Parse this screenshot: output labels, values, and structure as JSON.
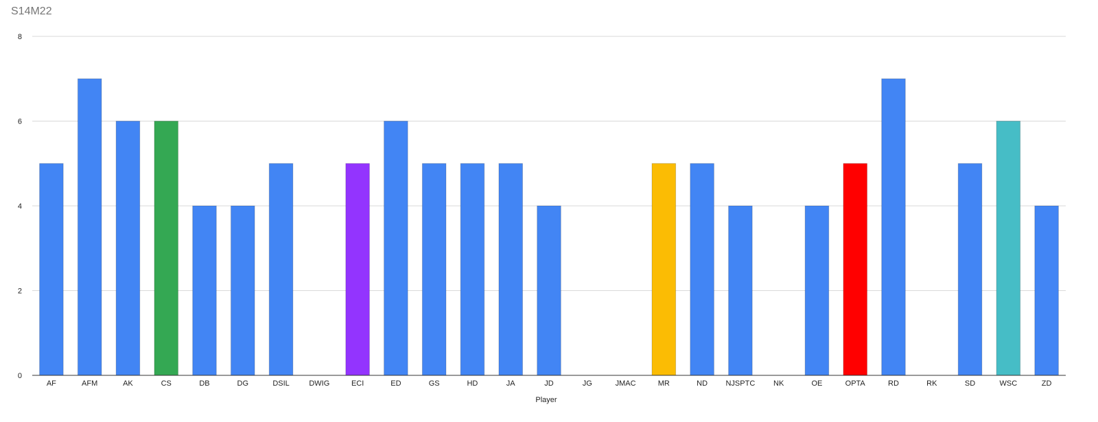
{
  "chart_data": {
    "type": "bar",
    "title": "S14M22",
    "xlabel": "Player",
    "ylabel": "",
    "ylim": [
      0,
      8
    ],
    "yticks": [
      0,
      2,
      4,
      6,
      8
    ],
    "grid": true,
    "legend": "none",
    "categories": [
      "AF",
      "AFM",
      "AK",
      "CS",
      "DB",
      "DG",
      "DSIL",
      "DWIG",
      "ECI",
      "ED",
      "GS",
      "HD",
      "JA",
      "JD",
      "JG",
      "JMAC",
      "MR",
      "ND",
      "NJSPTC",
      "NK",
      "OE",
      "OPTA",
      "RD",
      "RK",
      "SD",
      "WSC",
      "ZD"
    ],
    "values": [
      5,
      7,
      6,
      6,
      4,
      4,
      5,
      0,
      5,
      6,
      5,
      5,
      5,
      4,
      0,
      0,
      5,
      5,
      4,
      0,
      4,
      5,
      7,
      0,
      5,
      6,
      4
    ],
    "colors": [
      "#4285f4",
      "#4285f4",
      "#4285f4",
      "#34a853",
      "#4285f4",
      "#4285f4",
      "#4285f4",
      "#4285f4",
      "#9334fe",
      "#4285f4",
      "#4285f4",
      "#4285f4",
      "#4285f4",
      "#4285f4",
      "#4285f4",
      "#4285f4",
      "#fbbc04",
      "#4285f4",
      "#4285f4",
      "#4285f4",
      "#4285f4",
      "#ff0000",
      "#4285f4",
      "#4285f4",
      "#4285f4",
      "#46bdc6",
      "#4285f4"
    ]
  }
}
